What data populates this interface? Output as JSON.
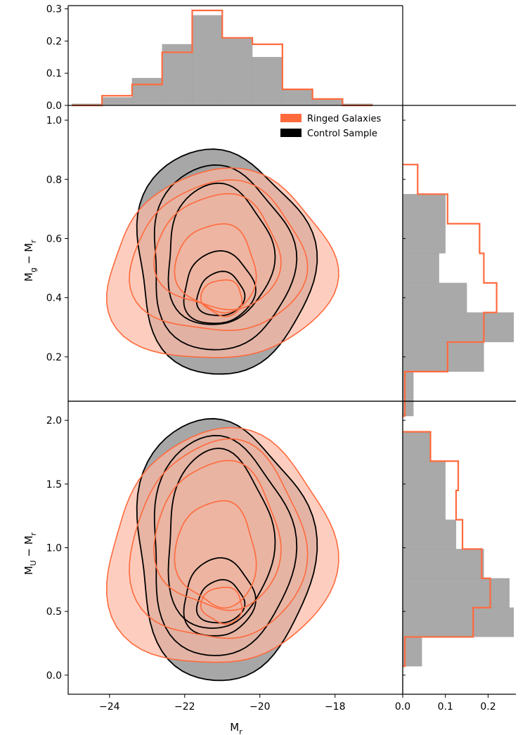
{
  "colors": {
    "ringed": "#ff6a3d",
    "ringed_fill": "#fcb9a4",
    "control": "#000000",
    "control_fill": "#8a8a8a",
    "hist_gray": "#a9a9a9"
  },
  "legend": {
    "items": [
      {
        "label": "Ringed Galaxies"
      },
      {
        "label": "Control Sample"
      }
    ]
  },
  "chart_data": [
    {
      "panel": "top-marginal",
      "type": "bar",
      "xlim": [
        -25.1,
        -16.2
      ],
      "ylim": [
        0,
        0.31
      ],
      "yticks": [
        "0.0",
        "0.1",
        "0.2",
        "0.3"
      ],
      "bin_edges": [
        -25.0,
        -24.2,
        -23.4,
        -22.6,
        -21.8,
        -21.0,
        -20.2,
        -19.4,
        -18.6,
        -17.8,
        -17.0
      ],
      "series": [
        {
          "name": "Control Sample",
          "style": "filled",
          "values": [
            0.005,
            0.025,
            0.085,
            0.19,
            0.28,
            0.21,
            0.15,
            0.05,
            0.02,
            0.005
          ]
        },
        {
          "name": "Ringed Galaxies",
          "style": "step",
          "values": [
            0.0,
            0.03,
            0.065,
            0.165,
            0.295,
            0.21,
            0.19,
            0.05,
            0.02,
            0.0
          ]
        }
      ]
    },
    {
      "panel": "main-upper",
      "type": "scatter",
      "xlabel": "",
      "ylabel": "M_g − M_r",
      "xlim": [
        -25.1,
        -16.2
      ],
      "ylim": [
        0.05,
        1.05
      ],
      "yticks": [
        "0.2",
        "0.4",
        "0.6",
        "0.8",
        "1.0"
      ],
      "contours": [
        {
          "group": "control",
          "level": 1,
          "center": [
            -21.0,
            0.52
          ],
          "rx": 2.4,
          "ry": 0.37
        },
        {
          "group": "control",
          "level": 2,
          "center": [
            -21.05,
            0.53
          ],
          "rx": 1.95,
          "ry": 0.3
        },
        {
          "group": "control",
          "level": 3,
          "center": [
            -21.1,
            0.54
          ],
          "rx": 1.45,
          "ry": 0.23
        },
        {
          "group": "control",
          "level": 4,
          "center": [
            -21.1,
            0.43
          ],
          "rx": 0.95,
          "ry": 0.12
        },
        {
          "group": "control",
          "level": 5,
          "center": [
            -21.05,
            0.41
          ],
          "rx": 0.62,
          "ry": 0.075
        },
        {
          "group": "ringed",
          "level": 1,
          "center": [
            -21.05,
            0.5
          ],
          "rx": 3.0,
          "ry": 0.32
        },
        {
          "group": "ringed",
          "level": 2,
          "center": [
            -21.1,
            0.53
          ],
          "rx": 2.25,
          "ry": 0.26
        },
        {
          "group": "ringed",
          "level": 3,
          "center": [
            -21.1,
            0.55
          ],
          "rx": 1.6,
          "ry": 0.2
        },
        {
          "group": "ringed",
          "level": 4,
          "center": [
            -21.15,
            0.5
          ],
          "rx": 1.05,
          "ry": 0.15
        },
        {
          "group": "ringed",
          "level": 5,
          "center": [
            -21.0,
            0.4
          ],
          "rx": 0.55,
          "ry": 0.06
        }
      ]
    },
    {
      "panel": "right-marginal-upper",
      "type": "bar",
      "orientation": "horizontal",
      "xlim": [
        0,
        0.265
      ],
      "ylim": [
        0.05,
        1.05
      ],
      "bin_edges": [
        0.0,
        0.15,
        0.25,
        0.35,
        0.45,
        0.55,
        0.65,
        0.75,
        0.85
      ],
      "series": [
        {
          "name": "Control Sample",
          "style": "filled",
          "values": [
            0.025,
            0.19,
            0.26,
            0.15,
            0.085,
            0.1,
            0.1,
            0.0
          ]
        },
        {
          "name": "Ringed Galaxies",
          "style": "step",
          "values": [
            0.005,
            0.105,
            0.19,
            0.22,
            0.19,
            0.18,
            0.105,
            0.035
          ]
        }
      ]
    },
    {
      "panel": "main-lower",
      "type": "scatter",
      "xlabel": "M_r",
      "ylabel": "M_U − M_r",
      "xlim": [
        -25.1,
        -16.2
      ],
      "ylim": [
        -0.15,
        2.15
      ],
      "xticks": [
        "−24",
        "−22",
        "−20",
        "−18"
      ],
      "yticks": [
        "0.0",
        "0.5",
        "1.0",
        "1.5",
        "2.0"
      ],
      "contours": [
        {
          "group": "control",
          "level": 1,
          "center": [
            -21.0,
            0.98
          ],
          "rx": 2.4,
          "ry": 1.0
        },
        {
          "group": "control",
          "level": 2,
          "center": [
            -21.05,
            1.0
          ],
          "rx": 1.95,
          "ry": 0.83
        },
        {
          "group": "control",
          "level": 3,
          "center": [
            -21.1,
            1.05
          ],
          "rx": 1.45,
          "ry": 0.68
        },
        {
          "group": "control",
          "level": 4,
          "center": [
            -21.1,
            0.6
          ],
          "rx": 0.95,
          "ry": 0.3
        },
        {
          "group": "control",
          "level": 5,
          "center": [
            -21.05,
            0.57
          ],
          "rx": 0.62,
          "ry": 0.17
        },
        {
          "group": "ringed",
          "level": 1,
          "center": [
            -21.05,
            0.97
          ],
          "rx": 3.0,
          "ry": 0.92
        },
        {
          "group": "ringed",
          "level": 2,
          "center": [
            -21.1,
            1.03
          ],
          "rx": 2.25,
          "ry": 0.8
        },
        {
          "group": "ringed",
          "level": 3,
          "center": [
            -21.1,
            1.08
          ],
          "rx": 1.6,
          "ry": 0.6
        },
        {
          "group": "ringed",
          "level": 4,
          "center": [
            -21.15,
            0.95
          ],
          "rx": 1.05,
          "ry": 0.42
        },
        {
          "group": "ringed",
          "level": 5,
          "center": [
            -21.0,
            0.55
          ],
          "rx": 0.55,
          "ry": 0.14
        }
      ]
    },
    {
      "panel": "right-marginal-lower",
      "type": "bar",
      "orientation": "horizontal",
      "xlim": [
        0,
        0.265
      ],
      "xticks": [
        "0.0",
        "0.1",
        "0.2"
      ],
      "ylim": [
        -0.15,
        2.15
      ],
      "bin_edges": [
        0.07,
        0.3,
        0.53,
        0.76,
        0.99,
        1.22,
        1.45,
        1.68,
        1.91
      ],
      "series": [
        {
          "name": "Control Sample",
          "style": "filled",
          "values": [
            0.045,
            0.26,
            0.25,
            0.19,
            0.125,
            0.1,
            0.1,
            0.065
          ]
        },
        {
          "name": "Ringed Galaxies",
          "style": "step",
          "values": [
            0.005,
            0.165,
            0.205,
            0.185,
            0.14,
            0.125,
            0.13,
            0.065
          ]
        }
      ]
    }
  ]
}
